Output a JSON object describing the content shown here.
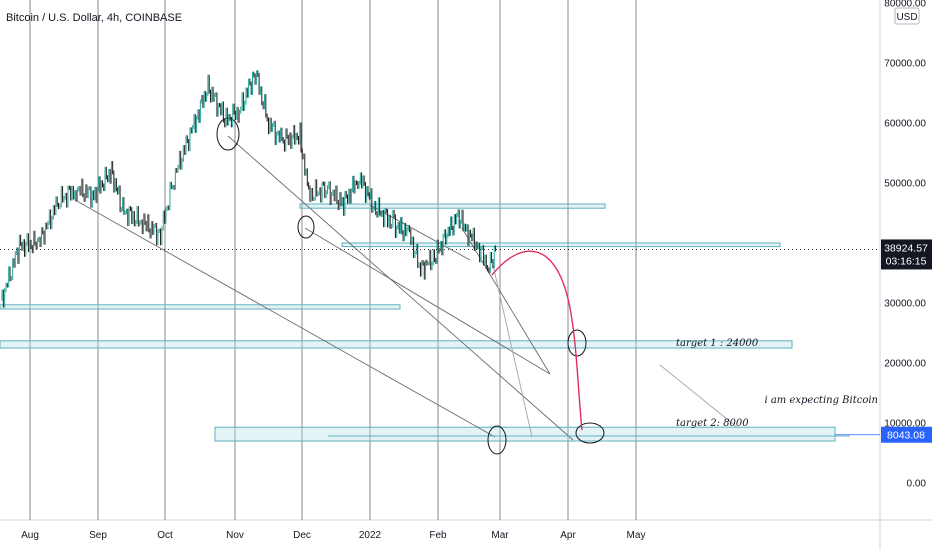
{
  "chart_data": {
    "type": "candlestick",
    "title": "Bitcoin / U.S. Dollar, 4h, COINBASE",
    "currency_badge": "USD",
    "y_axis": {
      "ticks": [
        0,
        10000,
        20000,
        30000,
        40000,
        50000,
        60000,
        70000,
        80000
      ],
      "tick_labels": [
        "0.00",
        "10000.00",
        "20000.00",
        "30000.00",
        "40000.00",
        "50000.00",
        "60000.00",
        "70000.00",
        "80000.00"
      ]
    },
    "x_axis": {
      "tick_labels": [
        "Aug",
        "Sep",
        "Oct",
        "Nov",
        "Dec",
        "2022",
        "Feb",
        "Mar",
        "Apr",
        "May"
      ],
      "ticks": [
        "2021-08-01",
        "2021-09-01",
        "2021-10-01",
        "2021-11-01",
        "2021-12-01",
        "2022-01-01",
        "2022-02-01",
        "2022-03-01",
        "2022-04-01",
        "2022-05-01"
      ]
    },
    "price_path": [
      {
        "date": "2021-07-21",
        "close": 30000
      },
      {
        "date": "2021-07-28",
        "close": 39500
      },
      {
        "date": "2021-08-05",
        "close": 40000
      },
      {
        "date": "2021-08-14",
        "close": 47000
      },
      {
        "date": "2021-08-22",
        "close": 49000
      },
      {
        "date": "2021-08-30",
        "close": 48000
      },
      {
        "date": "2021-09-07",
        "close": 52000
      },
      {
        "date": "2021-09-12",
        "close": 45500
      },
      {
        "date": "2021-09-22",
        "close": 43000
      },
      {
        "date": "2021-09-29",
        "close": 41500
      },
      {
        "date": "2021-10-05",
        "close": 51000
      },
      {
        "date": "2021-10-15",
        "close": 61000
      },
      {
        "date": "2021-10-20",
        "close": 66000
      },
      {
        "date": "2021-10-28",
        "close": 60500
      },
      {
        "date": "2021-11-03",
        "close": 62000
      },
      {
        "date": "2021-11-10",
        "close": 68500
      },
      {
        "date": "2021-11-16",
        "close": 60000
      },
      {
        "date": "2021-11-22",
        "close": 57000
      },
      {
        "date": "2021-11-30",
        "close": 58000
      },
      {
        "date": "2021-12-04",
        "close": 48000
      },
      {
        "date": "2021-12-12",
        "close": 49000
      },
      {
        "date": "2021-12-20",
        "close": 46500
      },
      {
        "date": "2021-12-27",
        "close": 51000
      },
      {
        "date": "2022-01-03",
        "close": 46000
      },
      {
        "date": "2022-01-12",
        "close": 43000
      },
      {
        "date": "2022-01-19",
        "close": 41500
      },
      {
        "date": "2022-01-24",
        "close": 35500
      },
      {
        "date": "2022-01-31",
        "close": 38000
      },
      {
        "date": "2022-02-05",
        "close": 41500
      },
      {
        "date": "2022-02-10",
        "close": 44500
      },
      {
        "date": "2022-02-14",
        "close": 42000
      },
      {
        "date": "2022-02-18",
        "close": 40000
      },
      {
        "date": "2022-02-24",
        "close": 36000
      },
      {
        "date": "2022-02-27",
        "close": 38924.57
      }
    ],
    "current_price": {
      "label": "38924.57",
      "countdown": "03:16:15",
      "value": 38924.57
    },
    "target_price": {
      "label": "8043.08",
      "value": 8043.08
    },
    "annotations": [
      {
        "text": "target 1  :  24000"
      },
      {
        "text": "target 2: 8000"
      },
      {
        "text": "i am expecting Bitcoin"
      }
    ]
  }
}
